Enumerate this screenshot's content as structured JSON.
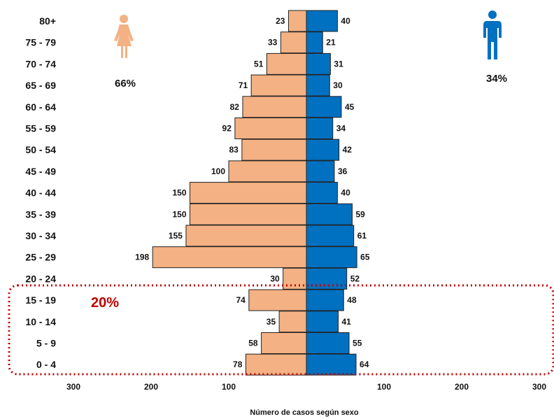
{
  "chart_data": {
    "type": "bar",
    "orientation": "horizontal-pyramid",
    "categories": [
      "80+",
      "75 - 79",
      "70 - 74",
      "65 - 69",
      "60 - 64",
      "55 - 59",
      "50 - 54",
      "45 - 49",
      "40 - 44",
      "35 - 39",
      "30 - 34",
      "25 - 29",
      "20 - 24",
      "15 - 19",
      "10 - 14",
      "5 - 9",
      "0 - 4"
    ],
    "series": [
      {
        "values": [
          23,
          33,
          51,
          71,
          82,
          92,
          83,
          100,
          150,
          150,
          155,
          198,
          30,
          74,
          35,
          58,
          78
        ],
        "color": "#F4B183",
        "side": "left"
      },
      {
        "values": [
          40,
          21,
          31,
          30,
          45,
          34,
          42,
          36,
          40,
          59,
          61,
          65,
          52,
          48,
          41,
          55,
          64
        ],
        "color": "#0070C0",
        "side": "right"
      }
    ],
    "x_ticks": [
      "300",
      "200",
      "100",
      "100",
      "200",
      "300"
    ],
    "xlim": [
      -300,
      300
    ],
    "xlabel": "Número de casos según sexo",
    "title": "",
    "grid": false,
    "annotations": {
      "female_pct": "66%",
      "male_pct": "34%",
      "highlight_pct": "20%",
      "highlight_color": "#C00000",
      "female_icon": "woman-icon",
      "male_icon": "man-icon"
    }
  }
}
